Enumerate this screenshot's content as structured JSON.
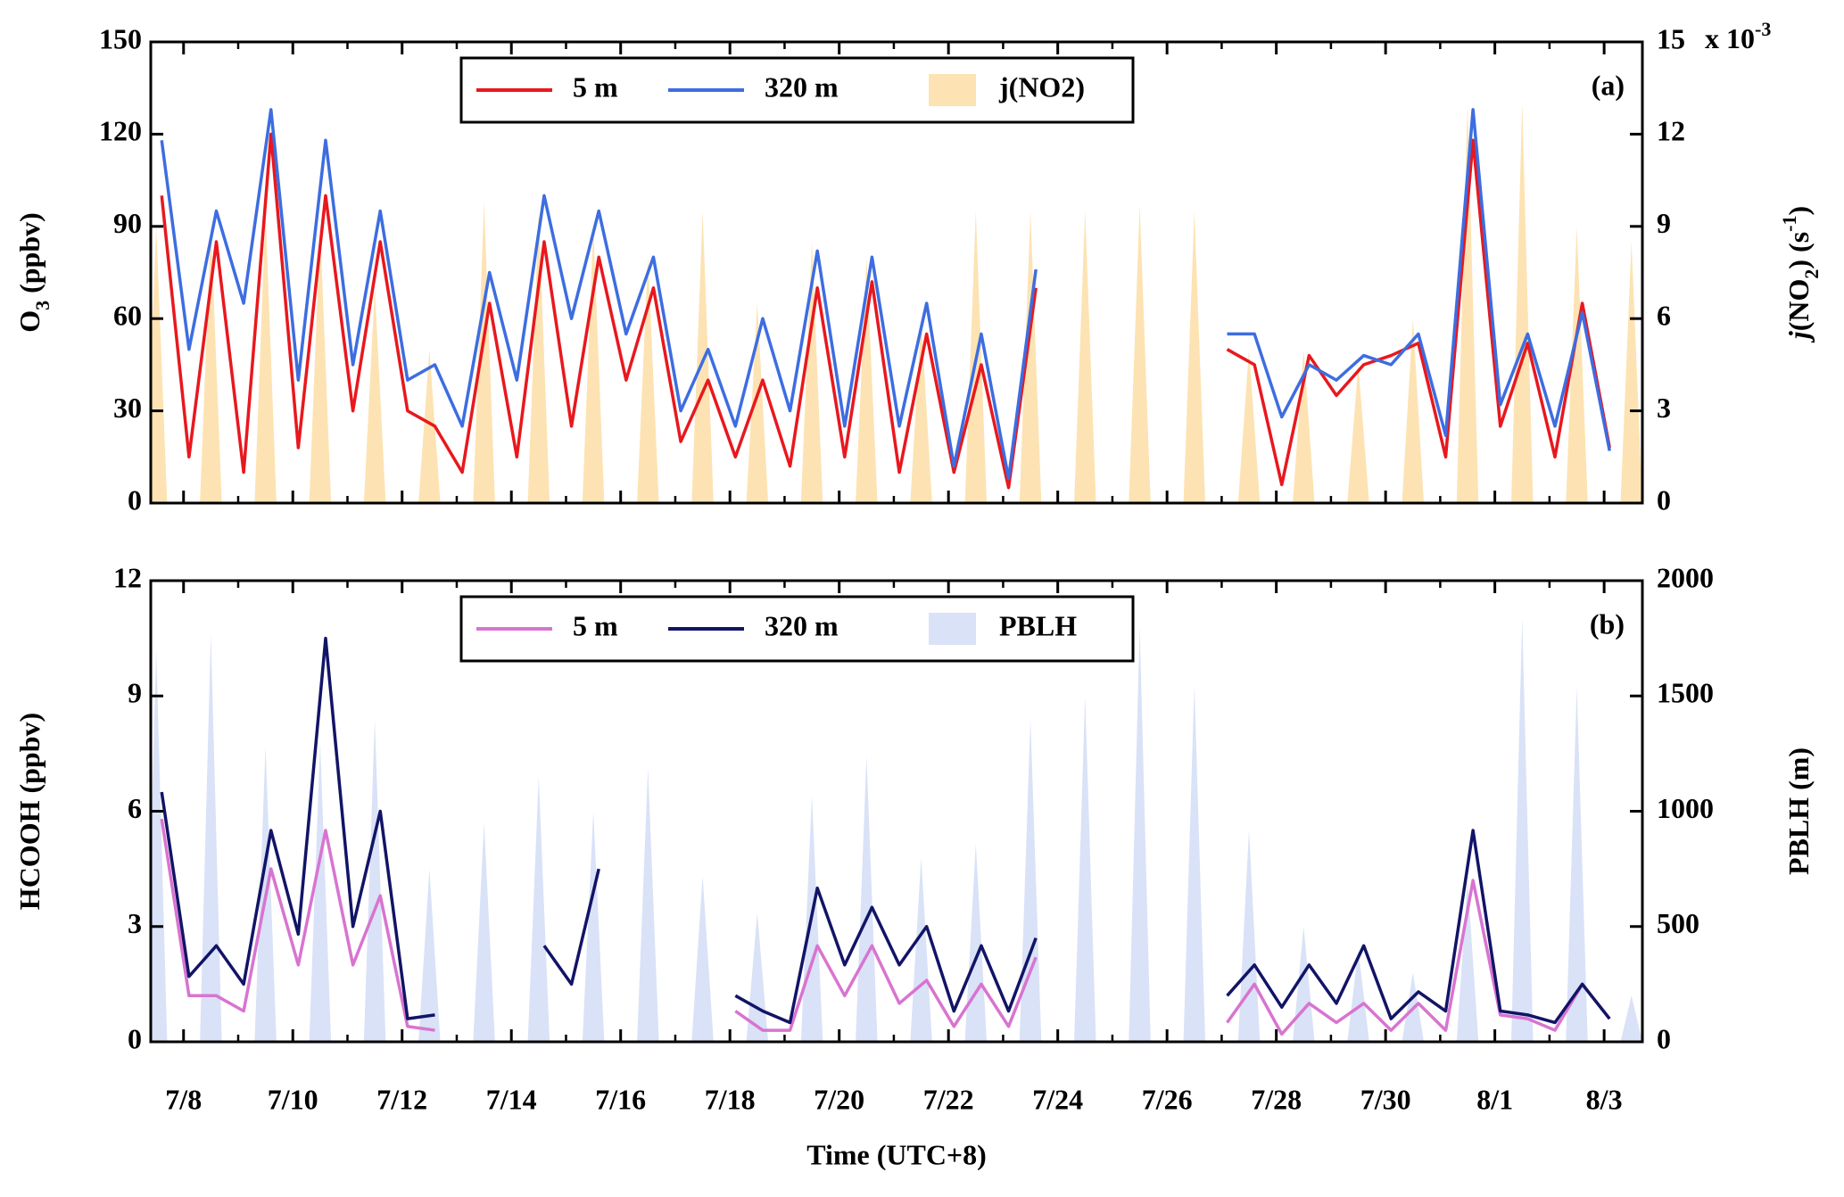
{
  "chart_data": [
    {
      "type": "line",
      "panel_label": "(a)",
      "y_label": [
        {
          "text": "O"
        },
        {
          "text": "3",
          "sub": true
        },
        {
          "text": " (ppbv)"
        }
      ],
      "y2_label": [
        {
          "text": "j",
          "italic": true
        },
        {
          "text": "(NO"
        },
        {
          "text": "2",
          "sub": true
        },
        {
          "text": ") (s"
        },
        {
          "text": "-1",
          "sup": true
        },
        {
          "text": ")"
        }
      ],
      "y2_multiplier": [
        {
          "text": "x 10"
        },
        {
          "text": "-3",
          "sup": true
        }
      ],
      "xlim": [
        7.4,
        34.7
      ],
      "ylim": [
        0,
        150
      ],
      "yticks": [
        0,
        30,
        60,
        90,
        120,
        150
      ],
      "y2lim": [
        0,
        15
      ],
      "y2ticks": [
        0,
        3,
        6,
        9,
        12,
        15
      ],
      "x": [
        7.6,
        8.1,
        8.6,
        9.1,
        9.6,
        10.1,
        10.6,
        11.1,
        11.6,
        12.1,
        12.6,
        13.1,
        13.6,
        14.1,
        14.6,
        15.1,
        15.6,
        16.1,
        16.6,
        17.1,
        17.6,
        18.1,
        18.6,
        19.1,
        19.6,
        20.1,
        20.6,
        21.1,
        21.6,
        22.1,
        22.6,
        23.1,
        23.6,
        24.1,
        24.6,
        25.1,
        25.6,
        26.1,
        26.6,
        27.1,
        27.6,
        28.1,
        28.6,
        29.1,
        29.6,
        30.1,
        30.6,
        31.1,
        31.6,
        32.1,
        32.6,
        33.1,
        33.6,
        34.1
      ],
      "series": [
        {
          "name": "5 m",
          "color": "#e8181e",
          "style": "line",
          "values": [
            100,
            15,
            85,
            10,
            120,
            18,
            100,
            30,
            85,
            30,
            25,
            10,
            65,
            15,
            85,
            25,
            80,
            40,
            70,
            20,
            40,
            15,
            40,
            12,
            70,
            15,
            72,
            10,
            55,
            10,
            45,
            5,
            70,
            null,
            null,
            null,
            null,
            null,
            null,
            50,
            45,
            6,
            48,
            35,
            45,
            48,
            52,
            15,
            118,
            25,
            52,
            15,
            65,
            18
          ]
        },
        {
          "name": "320 m",
          "color": "#3d6de0",
          "style": "line",
          "values": [
            118,
            50,
            95,
            65,
            128,
            40,
            118,
            45,
            95,
            40,
            45,
            25,
            75,
            40,
            100,
            60,
            95,
            55,
            80,
            30,
            50,
            25,
            60,
            30,
            82,
            25,
            80,
            25,
            65,
            12,
            55,
            8,
            76,
            null,
            null,
            null,
            null,
            null,
            null,
            55,
            55,
            28,
            45,
            40,
            48,
            45,
            55,
            22,
            128,
            32,
            55,
            25,
            62,
            17
          ]
        },
        {
          "name": "j(NO2)",
          "color": "#fde3b3",
          "style": "area",
          "axis": "y2",
          "x": [
            7.3,
            7.5,
            7.7,
            8.3,
            8.5,
            8.7,
            9.3,
            9.5,
            9.7,
            10.3,
            10.5,
            10.7,
            11.3,
            11.5,
            11.7,
            12.3,
            12.5,
            12.7,
            13.3,
            13.5,
            13.7,
            14.3,
            14.5,
            14.7,
            15.3,
            15.5,
            15.7,
            16.3,
            16.5,
            16.7,
            17.3,
            17.5,
            17.7,
            18.3,
            18.5,
            18.7,
            19.3,
            19.5,
            19.7,
            20.3,
            20.5,
            20.7,
            21.3,
            21.5,
            21.7,
            22.3,
            22.5,
            22.7,
            23.3,
            23.5,
            23.7,
            24.3,
            24.5,
            24.7,
            25.3,
            25.5,
            25.7,
            26.3,
            26.5,
            26.7,
            27.3,
            27.5,
            27.7,
            28.3,
            28.5,
            28.7,
            29.3,
            29.5,
            29.7,
            30.3,
            30.5,
            30.7,
            31.3,
            31.5,
            31.7,
            32.3,
            32.5,
            32.7,
            33.3,
            33.5,
            33.7,
            34.3,
            34.5,
            34.7
          ],
          "values": [
            0,
            9,
            0,
            0,
            9,
            0,
            0,
            9.5,
            0,
            0,
            9,
            0,
            0,
            7,
            0,
            0,
            5,
            0,
            0,
            9.8,
            0,
            0,
            9.5,
            0,
            0,
            9,
            0,
            0,
            8,
            0,
            0,
            9.5,
            0,
            0,
            6.5,
            0,
            0,
            8.5,
            0,
            0,
            8,
            0,
            0,
            6,
            0,
            0,
            9.5,
            0,
            0,
            9.5,
            0,
            0,
            9.5,
            0,
            0,
            9.7,
            0,
            0,
            9.5,
            0,
            0,
            5,
            0,
            0,
            5,
            0,
            0,
            4.5,
            0,
            0,
            6,
            0,
            0,
            13,
            0,
            0,
            13,
            0,
            0,
            9,
            0,
            0,
            8.5,
            0
          ]
        }
      ]
    },
    {
      "type": "line",
      "panel_label": "(b)",
      "y_label": [
        {
          "text": "HCOOH (ppbv)"
        }
      ],
      "y2_label": [
        {
          "text": "PBLH (m)"
        }
      ],
      "x_label": "Time (UTC+8)",
      "xlim": [
        7.4,
        34.7
      ],
      "ylim": [
        0,
        12
      ],
      "yticks": [
        0,
        3,
        6,
        9,
        12
      ],
      "y2lim": [
        0,
        2000
      ],
      "y2ticks": [
        0,
        500,
        1000,
        1500,
        2000
      ],
      "xticks": [
        {
          "value": 8,
          "label": "7/8"
        },
        {
          "value": 10,
          "label": "7/10"
        },
        {
          "value": 12,
          "label": "7/12"
        },
        {
          "value": 14,
          "label": "7/14"
        },
        {
          "value": 16,
          "label": "7/16"
        },
        {
          "value": 18,
          "label": "7/18"
        },
        {
          "value": 20,
          "label": "7/20"
        },
        {
          "value": 22,
          "label": "7/22"
        },
        {
          "value": 24,
          "label": "7/24"
        },
        {
          "value": 26,
          "label": "7/26"
        },
        {
          "value": 28,
          "label": "7/28"
        },
        {
          "value": 30,
          "label": "7/30"
        },
        {
          "value": 32,
          "label": "8/1"
        },
        {
          "value": 34,
          "label": "8/3"
        }
      ],
      "xminorticks": [
        9,
        11,
        13,
        15,
        17,
        19,
        21,
        23,
        25,
        27,
        29,
        31,
        33
      ],
      "x": [
        7.6,
        8.1,
        8.6,
        9.1,
        9.6,
        10.1,
        10.6,
        11.1,
        11.6,
        12.1,
        12.6,
        13.1,
        13.6,
        14.1,
        14.6,
        15.1,
        15.6,
        16.1,
        16.6,
        17.1,
        17.6,
        18.1,
        18.6,
        19.1,
        19.6,
        20.1,
        20.6,
        21.1,
        21.6,
        22.1,
        22.6,
        23.1,
        23.6,
        24.1,
        24.6,
        25.1,
        25.6,
        26.1,
        26.6,
        27.1,
        27.6,
        28.1,
        28.6,
        29.1,
        29.6,
        30.1,
        30.6,
        31.1,
        31.6,
        32.1,
        32.6,
        33.1,
        33.6,
        34.1
      ],
      "series": [
        {
          "name": "5 m",
          "color": "#d874d0",
          "style": "line",
          "values": [
            5.8,
            1.2,
            1.2,
            0.8,
            4.5,
            2.0,
            5.5,
            2.0,
            3.8,
            0.4,
            0.3,
            null,
            null,
            null,
            null,
            null,
            null,
            null,
            null,
            null,
            null,
            0.8,
            0.3,
            0.3,
            2.5,
            1.2,
            2.5,
            1.0,
            1.6,
            0.4,
            1.5,
            0.4,
            2.2,
            null,
            null,
            null,
            null,
            null,
            null,
            0.5,
            1.5,
            0.2,
            1.0,
            0.5,
            1.0,
            0.3,
            1.0,
            0.3,
            4.2,
            0.7,
            0.6,
            0.3,
            1.5,
            0.6
          ]
        },
        {
          "name": "320 m",
          "color": "#121466",
          "style": "line",
          "values": [
            6.5,
            1.7,
            2.5,
            1.5,
            5.5,
            2.8,
            10.5,
            3.0,
            6.0,
            0.6,
            0.7,
            null,
            null,
            null,
            2.5,
            1.5,
            4.5,
            null,
            null,
            null,
            null,
            1.2,
            0.8,
            0.5,
            4.0,
            2.0,
            3.5,
            2.0,
            3.0,
            0.8,
            2.5,
            0.8,
            2.7,
            null,
            null,
            null,
            null,
            null,
            null,
            1.2,
            2.0,
            0.9,
            2.0,
            1.0,
            2.5,
            0.6,
            1.3,
            0.8,
            5.5,
            0.8,
            0.7,
            0.5,
            1.5,
            0.6
          ]
        },
        {
          "name": "PBLH",
          "color": "#d9e2f7",
          "style": "area",
          "axis": "y2",
          "x": [
            7.3,
            7.5,
            7.7,
            8.3,
            8.5,
            8.7,
            9.3,
            9.5,
            9.7,
            10.3,
            10.5,
            10.7,
            11.3,
            11.5,
            11.7,
            12.3,
            12.5,
            12.7,
            13.3,
            13.5,
            13.7,
            14.3,
            14.5,
            14.7,
            15.3,
            15.5,
            15.7,
            16.3,
            16.5,
            16.7,
            17.3,
            17.5,
            17.7,
            18.3,
            18.5,
            18.7,
            19.3,
            19.5,
            19.7,
            20.3,
            20.5,
            20.7,
            21.3,
            21.5,
            21.7,
            22.3,
            22.5,
            22.7,
            23.3,
            23.5,
            23.7,
            24.3,
            24.5,
            24.7,
            25.3,
            25.5,
            25.7,
            26.3,
            26.5,
            26.7,
            27.3,
            27.5,
            27.7,
            28.3,
            28.5,
            28.7,
            29.3,
            29.5,
            29.7,
            30.3,
            30.5,
            30.7,
            31.3,
            31.5,
            31.7,
            32.3,
            32.5,
            32.7,
            33.3,
            33.5,
            33.7,
            34.3,
            34.5,
            34.7
          ],
          "values": [
            0,
            1700,
            0,
            0,
            1770,
            0,
            0,
            1280,
            0,
            0,
            1300,
            0,
            0,
            1400,
            0,
            0,
            750,
            0,
            0,
            950,
            0,
            0,
            1150,
            0,
            0,
            1000,
            0,
            0,
            1190,
            0,
            0,
            720,
            0,
            0,
            560,
            0,
            0,
            1070,
            0,
            0,
            1240,
            0,
            0,
            800,
            0,
            0,
            860,
            0,
            0,
            1400,
            0,
            0,
            1500,
            0,
            0,
            1800,
            0,
            0,
            1550,
            0,
            0,
            920,
            0,
            0,
            500,
            0,
            0,
            400,
            0,
            0,
            300,
            0,
            0,
            700,
            0,
            0,
            1840,
            0,
            0,
            1540,
            0,
            0,
            200,
            0
          ]
        }
      ]
    }
  ]
}
